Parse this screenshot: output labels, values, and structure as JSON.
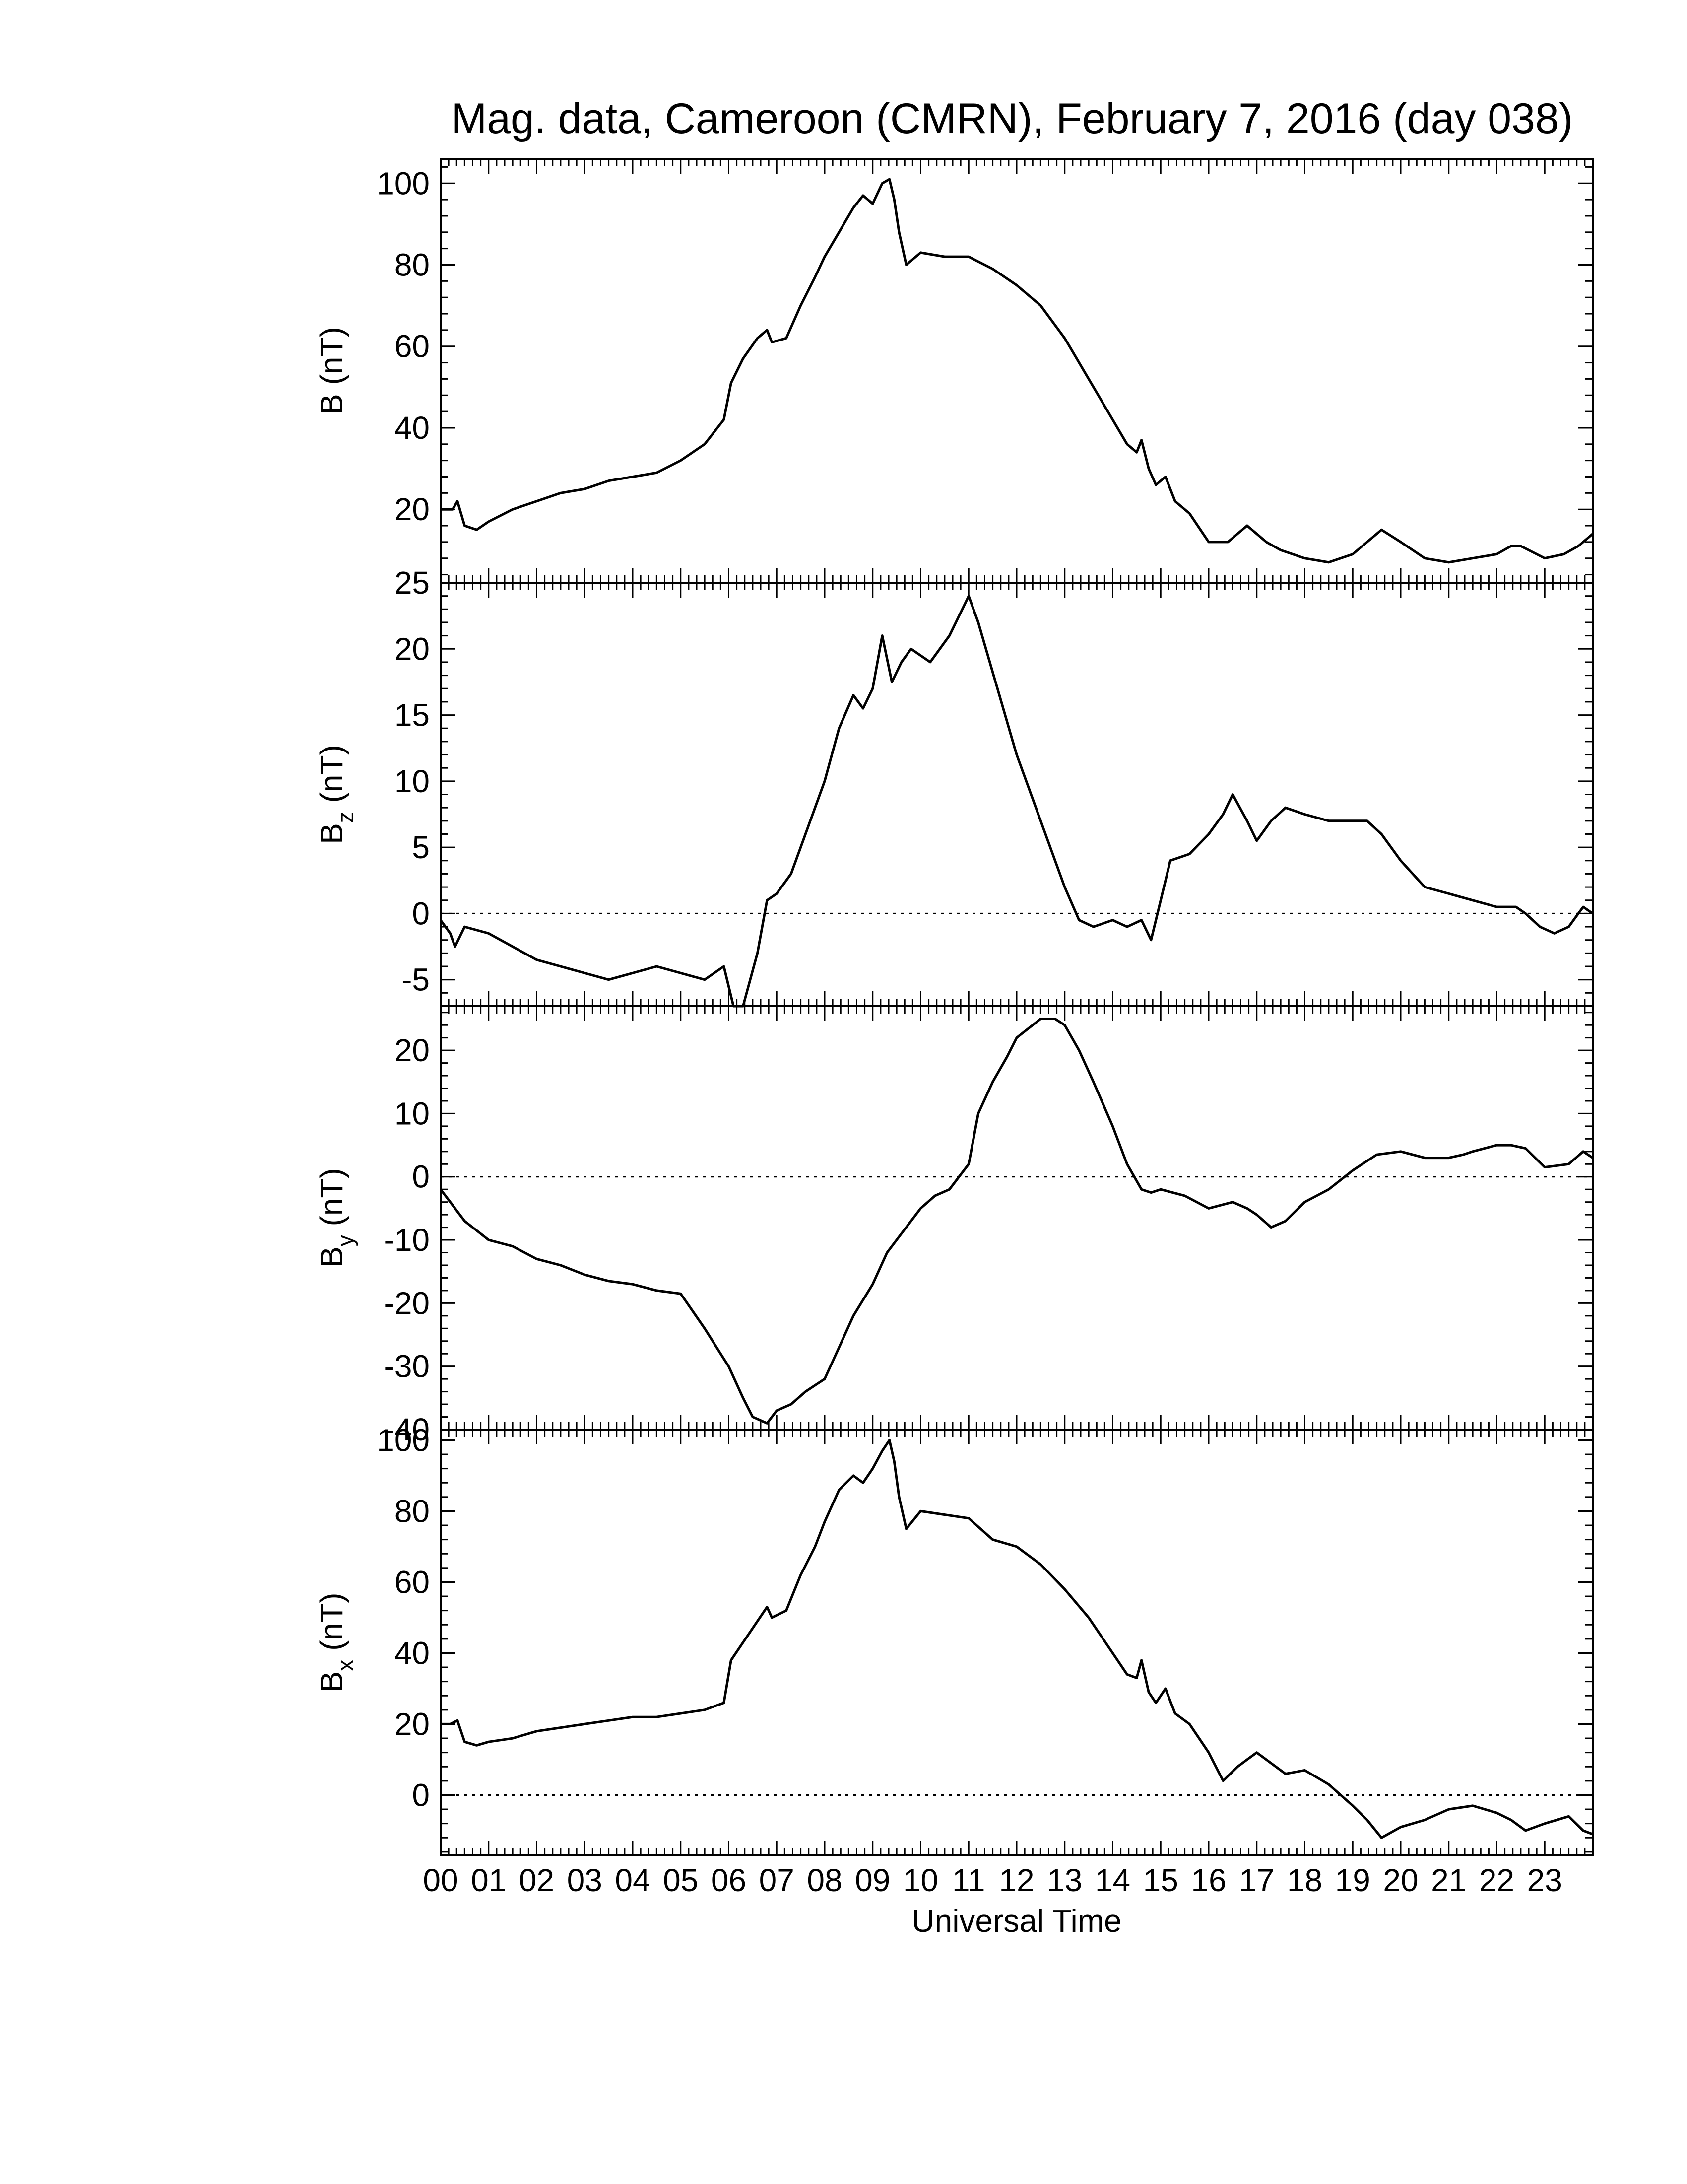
{
  "chart_data": {
    "type": "line",
    "title": "Mag. data, Cameroon (CMRN), February 7, 2016 (day 038)",
    "xlabel": "Universal Time",
    "xlim": [
      0,
      24
    ],
    "x_tick_labels": [
      "00",
      "01",
      "02",
      "03",
      "04",
      "05",
      "06",
      "07",
      "08",
      "09",
      "10",
      "11",
      "12",
      "13",
      "14",
      "15",
      "16",
      "17",
      "18",
      "19",
      "20",
      "21",
      "22",
      "23"
    ],
    "panels": [
      {
        "ylabel": "B (nT)",
        "ylim": [
          2,
          106
        ],
        "yticks": [
          20,
          40,
          60,
          80,
          100
        ],
        "ytick_labels": [
          "20",
          "40",
          "60",
          "80",
          "100"
        ],
        "zero_line": false,
        "x": [
          0,
          0.25,
          0.35,
          0.5,
          0.75,
          1,
          1.5,
          2,
          2.5,
          3,
          3.5,
          4,
          4.5,
          5,
          5.5,
          5.9,
          6.05,
          6.3,
          6.6,
          6.8,
          6.9,
          7.2,
          7.5,
          7.8,
          8,
          8.3,
          8.6,
          8.8,
          9,
          9.2,
          9.35,
          9.45,
          9.55,
          9.7,
          10,
          10.5,
          11,
          11.5,
          12,
          12.5,
          13,
          13.5,
          14,
          14.3,
          14.5,
          14.6,
          14.75,
          14.9,
          15.1,
          15.3,
          15.6,
          16,
          16.4,
          16.8,
          17.2,
          17.5,
          18,
          18.5,
          19,
          19.3,
          19.6,
          20,
          20.5,
          21,
          21.5,
          22,
          22.3,
          22.5,
          23,
          23.4,
          23.7,
          24
        ],
        "y": [
          20,
          20,
          22,
          16,
          15,
          17,
          20,
          22,
          24,
          25,
          27,
          28,
          29,
          32,
          36,
          42,
          51,
          57,
          62,
          64,
          61,
          62,
          70,
          77,
          82,
          88,
          94,
          97,
          95,
          100,
          101,
          96,
          88,
          80,
          83,
          82,
          82,
          79,
          75,
          70,
          62,
          52,
          42,
          36,
          34,
          37,
          30,
          26,
          28,
          22,
          19,
          12,
          12,
          16,
          12,
          10,
          8,
          7,
          9,
          12,
          15,
          12,
          8,
          7,
          8,
          9,
          11,
          11,
          8,
          9,
          11,
          14
        ]
      },
      {
        "ylabel": "B",
        "ylabel_subscript": "z",
        "ylabel_unit": "(nT)",
        "ylim": [
          -7,
          25
        ],
        "yticks": [
          -5,
          0,
          5,
          10,
          15,
          20,
          25
        ],
        "ytick_labels": [
          "-5",
          "0",
          "5",
          "10",
          "15",
          "20",
          "25"
        ],
        "zero_line": true,
        "x": [
          0,
          0.2,
          0.3,
          0.5,
          1,
          1.5,
          2,
          2.5,
          3,
          3.5,
          4,
          4.5,
          5,
          5.5,
          5.9,
          6.1,
          6.3,
          6.6,
          6.8,
          7,
          7.3,
          7.6,
          8,
          8.3,
          8.6,
          8.8,
          9,
          9.2,
          9.4,
          9.6,
          9.8,
          10.2,
          10.6,
          11,
          11.2,
          11.6,
          12,
          12.5,
          13,
          13.3,
          13.6,
          14,
          14.3,
          14.6,
          14.8,
          15,
          15.2,
          15.6,
          16,
          16.3,
          16.5,
          16.8,
          17,
          17.3,
          17.6,
          18,
          18.5,
          19,
          19.3,
          19.6,
          20,
          20.5,
          21,
          21.5,
          22,
          22.4,
          22.6,
          22.9,
          23.2,
          23.5,
          23.8,
          24
        ],
        "y": [
          -0.5,
          -1.5,
          -2.5,
          -1,
          -1.5,
          -2.5,
          -3.5,
          -4,
          -4.5,
          -5,
          -4.5,
          -4,
          -4.5,
          -5,
          -4,
          -7,
          -7,
          -3,
          1,
          1.5,
          3,
          6,
          10,
          14,
          16.5,
          15.5,
          17,
          21,
          17.5,
          19,
          20,
          19,
          21,
          24,
          22,
          17,
          12,
          7,
          2,
          -0.5,
          -1,
          -0.5,
          -1,
          -0.5,
          -2,
          1,
          4,
          4.5,
          6,
          7.5,
          9,
          7,
          5.5,
          7,
          8,
          7.5,
          7,
          7,
          7,
          6,
          4,
          2,
          1.5,
          1,
          0.5,
          0.5,
          0,
          -1,
          -1.5,
          -1,
          0.5,
          0
        ]
      },
      {
        "ylabel": "B",
        "ylabel_subscript": "y",
        "ylabel_unit": "(nT)",
        "ylim": [
          -40,
          27
        ],
        "yticks": [
          -40,
          -30,
          -20,
          -10,
          0,
          10,
          20
        ],
        "ytick_labels": [
          "-40",
          "-30",
          "-20",
          "-10",
          "0",
          "10",
          "20"
        ],
        "zero_line": true,
        "x": [
          0,
          0.2,
          0.5,
          1,
          1.5,
          2,
          2.5,
          3,
          3.5,
          4,
          4.5,
          5,
          5.5,
          6,
          6.3,
          6.5,
          6.8,
          7,
          7.3,
          7.6,
          8,
          8.3,
          8.6,
          9,
          9.3,
          9.6,
          10,
          10.3,
          10.6,
          10.8,
          11,
          11.2,
          11.5,
          11.8,
          12,
          12.5,
          12.8,
          13,
          13.3,
          13.6,
          14,
          14.3,
          14.6,
          14.8,
          15,
          15.5,
          16,
          16.5,
          16.8,
          17,
          17.3,
          17.6,
          18,
          18.5,
          19,
          19.5,
          20,
          20.5,
          21,
          21.3,
          21.5,
          22,
          22.3,
          22.6,
          23,
          23.5,
          23.8,
          24
        ],
        "y": [
          -2,
          -4,
          -7,
          -10,
          -11,
          -13,
          -14,
          -15.5,
          -16.5,
          -17,
          -18,
          -18.5,
          -24,
          -30,
          -35,
          -38,
          -39,
          -37,
          -36,
          -34,
          -32,
          -27,
          -22,
          -17,
          -12,
          -9,
          -5,
          -3,
          -2,
          0,
          2,
          10,
          15,
          19,
          22,
          25,
          25,
          24,
          20,
          15,
          8,
          2,
          -2,
          -2.5,
          -2,
          -3,
          -5,
          -4,
          -5,
          -6,
          -8,
          -7,
          -4,
          -2,
          1,
          3.5,
          4,
          3,
          3,
          3.5,
          4,
          5,
          5,
          4.5,
          1.5,
          2,
          4,
          3
        ]
      },
      {
        "ylabel": "B",
        "ylabel_subscript": "x",
        "ylabel_unit": "(nT)",
        "ylim": [
          -17,
          103
        ],
        "yticks": [
          0,
          20,
          40,
          60,
          80,
          100
        ],
        "ytick_labels": [
          "0",
          "20",
          "40",
          "60",
          "80",
          "100"
        ],
        "zero_line": true,
        "x": [
          0,
          0.2,
          0.35,
          0.5,
          0.75,
          1,
          1.5,
          2,
          2.5,
          3,
          3.5,
          4,
          4.5,
          5,
          5.5,
          5.9,
          6.05,
          6.3,
          6.6,
          6.8,
          6.9,
          7.2,
          7.5,
          7.8,
          8,
          8.3,
          8.6,
          8.8,
          9,
          9.2,
          9.35,
          9.45,
          9.55,
          9.7,
          10,
          10.5,
          11,
          11.5,
          12,
          12.5,
          13,
          13.5,
          14,
          14.3,
          14.5,
          14.6,
          14.75,
          14.9,
          15.1,
          15.3,
          15.6,
          16,
          16.3,
          16.6,
          16.8,
          17,
          17.3,
          17.6,
          18,
          18.5,
          19,
          19.3,
          19.6,
          20,
          20.5,
          21,
          21.5,
          22,
          22.3,
          22.6,
          23,
          23.5,
          23.8,
          24
        ],
        "y": [
          20,
          20,
          21,
          15,
          14,
          15,
          16,
          18,
          19,
          20,
          21,
          22,
          22,
          23,
          24,
          26,
          38,
          43,
          49,
          53,
          50,
          52,
          62,
          70,
          77,
          86,
          90,
          88,
          92,
          97,
          100,
          94,
          84,
          75,
          80,
          79,
          78,
          72,
          70,
          65,
          58,
          50,
          40,
          34,
          33,
          38,
          29,
          26,
          30,
          23,
          20,
          12,
          4,
          8,
          10,
          12,
          9,
          6,
          7,
          3,
          -3,
          -7,
          -12,
          -9,
          -7,
          -4,
          -3,
          -5,
          -7,
          -10,
          -8,
          -6,
          -10,
          -11
        ]
      }
    ]
  }
}
